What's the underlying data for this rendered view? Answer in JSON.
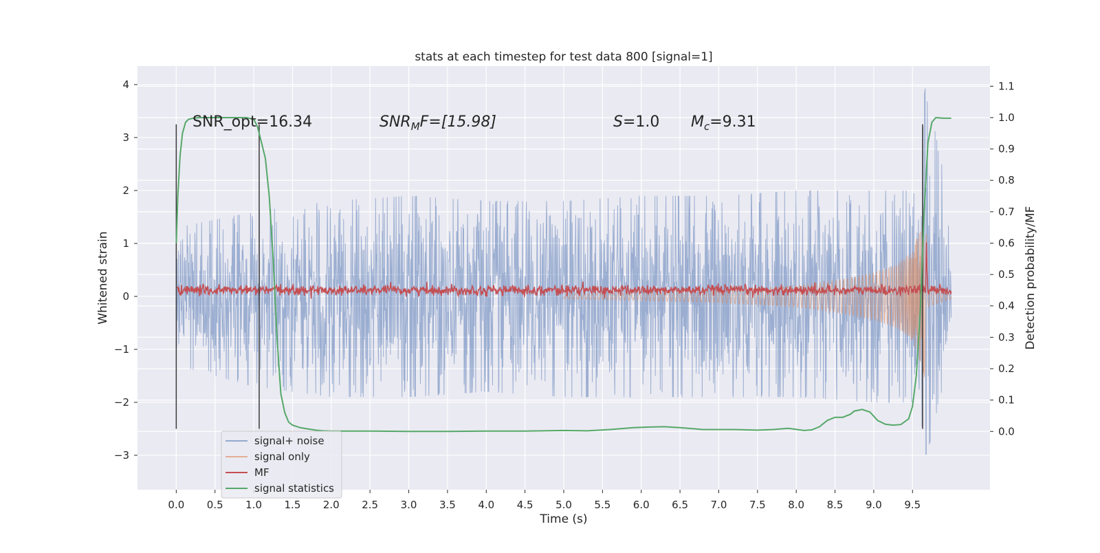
{
  "chart_data": {
    "type": "line",
    "title": "stats at each timestep for test data 800 [signal=1]",
    "xlabel": "Time (s)",
    "ylabel_left": "Whitened strain",
    "ylabel_right": "Detection probability/MF",
    "xlim": [
      -0.5,
      10.5
    ],
    "ylim_left": [
      -3.65,
      4.35
    ],
    "ylim_right": [
      -0.1857,
      1.1643
    ],
    "x_ticks": [
      0.0,
      0.5,
      1.0,
      1.5,
      2.0,
      2.5,
      3.0,
      3.5,
      4.0,
      4.5,
      5.0,
      5.5,
      6.0,
      6.5,
      7.0,
      7.5,
      8.0,
      8.5,
      9.0,
      9.5
    ],
    "x_tick_labels": [
      "0.0",
      "0.5",
      "1.0",
      "1.5",
      "2.0",
      "2.5",
      "3.0",
      "3.5",
      "4.0",
      "4.5",
      "5.0",
      "5.5",
      "6.0",
      "6.5",
      "7.0",
      "7.5",
      "8.0",
      "8.5",
      "9.0",
      "9.5"
    ],
    "y_left_ticks": [
      -3,
      -2,
      -1,
      0,
      1,
      2,
      3,
      4
    ],
    "y_left_tick_labels": [
      "−3",
      "−2",
      "−1",
      "0",
      "1",
      "2",
      "3",
      "4"
    ],
    "y_right_ticks": [
      0.0,
      0.1,
      0.2,
      0.3,
      0.4,
      0.5,
      0.6,
      0.7,
      0.8,
      0.9,
      1.0,
      1.1
    ],
    "y_right_tick_labels": [
      "0.0",
      "0.1",
      "0.2",
      "0.3",
      "0.4",
      "0.5",
      "0.6",
      "0.7",
      "0.8",
      "0.9",
      "1.0",
      "1.1"
    ],
    "grid": true,
    "legend_position": "lower-left",
    "colors": {
      "signal_noise": "#4c72b0",
      "signal_only": "#dd8452",
      "mf": "#c44e52",
      "statistics": "#55a868",
      "background": "#eaeaf2",
      "vline": "#3a3a3a"
    },
    "series": [
      {
        "name": "signal+ noise",
        "axis": "left",
        "description_points": "noise envelope approx amplitude 1-2.5",
        "envelope_upper": [
          [
            0.0,
            1.3
          ],
          [
            1.0,
            1.6
          ],
          [
            2.0,
            1.8
          ],
          [
            3.0,
            1.9
          ],
          [
            4.0,
            1.8
          ],
          [
            5.0,
            1.8
          ],
          [
            6.0,
            1.9
          ],
          [
            7.0,
            1.9
          ],
          [
            8.0,
            2.0
          ],
          [
            9.0,
            2.0
          ],
          [
            9.5,
            2.0
          ],
          [
            9.67,
            4.0
          ],
          [
            10.0,
            1.6
          ]
        ],
        "envelope_lower": [
          [
            0.0,
            -1.3
          ],
          [
            1.0,
            -1.7
          ],
          [
            2.0,
            -1.9
          ],
          [
            3.0,
            -1.9
          ],
          [
            4.0,
            -1.8
          ],
          [
            5.0,
            -1.9
          ],
          [
            6.0,
            -1.9
          ],
          [
            7.0,
            -1.9
          ],
          [
            8.0,
            -1.9
          ],
          [
            9.0,
            -2.0
          ],
          [
            9.5,
            -2.0
          ],
          [
            9.67,
            -3.0
          ],
          [
            10.0,
            -1.6
          ]
        ]
      },
      {
        "name": "signal only",
        "axis": "left",
        "envelope": [
          [
            5.0,
            0.05
          ],
          [
            6.0,
            0.08
          ],
          [
            7.0,
            0.12
          ],
          [
            8.0,
            0.2
          ],
          [
            8.5,
            0.3
          ],
          [
            9.0,
            0.45
          ],
          [
            9.3,
            0.6
          ],
          [
            9.5,
            0.85
          ],
          [
            9.6,
            1.3
          ],
          [
            9.67,
            1.6
          ],
          [
            9.7,
            0.2
          ],
          [
            10.0,
            0.05
          ]
        ]
      },
      {
        "name": "MF",
        "axis": "right",
        "level": 0.45,
        "peak": {
          "x": 9.68,
          "y": 0.6
        }
      },
      {
        "name": "signal statistics",
        "axis": "right",
        "x": [
          0.0,
          0.02,
          0.05,
          0.08,
          0.12,
          0.16,
          0.22,
          0.3,
          0.4,
          0.6,
          0.8,
          0.9,
          1.0,
          1.05,
          1.1,
          1.15,
          1.2,
          1.25,
          1.3,
          1.35,
          1.4,
          1.45,
          1.5,
          1.6,
          1.7,
          1.8,
          1.9,
          2.0,
          2.2,
          2.5,
          3.0,
          3.5,
          4.0,
          4.5,
          5.0,
          5.3,
          5.6,
          5.9,
          6.1,
          6.3,
          6.5,
          6.8,
          7.2,
          7.5,
          7.7,
          7.9,
          8.1,
          8.2,
          8.3,
          8.4,
          8.5,
          8.6,
          8.7,
          8.75,
          8.85,
          8.95,
          9.05,
          9.15,
          9.25,
          9.35,
          9.45,
          9.5,
          9.55,
          9.6,
          9.65,
          9.7,
          9.75,
          9.8,
          9.9,
          10.0
        ],
        "y": [
          0.6,
          0.75,
          0.88,
          0.95,
          0.985,
          0.995,
          0.998,
          1.0,
          1.0,
          1.0,
          1.0,
          1.0,
          0.995,
          0.97,
          0.92,
          0.87,
          0.75,
          0.55,
          0.3,
          0.12,
          0.06,
          0.03,
          0.02,
          0.012,
          0.008,
          0.004,
          0.002,
          0.001,
          0.001,
          0.001,
          0.0,
          0.0,
          0.001,
          0.001,
          0.003,
          0.002,
          0.006,
          0.012,
          0.014,
          0.015,
          0.012,
          0.006,
          0.006,
          0.004,
          0.006,
          0.01,
          0.003,
          0.005,
          0.015,
          0.035,
          0.045,
          0.045,
          0.055,
          0.065,
          0.07,
          0.062,
          0.035,
          0.023,
          0.02,
          0.022,
          0.04,
          0.08,
          0.18,
          0.38,
          0.7,
          0.92,
          0.985,
          1.0,
          0.998,
          0.998
        ]
      }
    ],
    "vertical_lines": [
      {
        "x": 0.0,
        "ymin": -2.5,
        "ymax": 3.25
      },
      {
        "x": 1.07,
        "ymin": -2.5,
        "ymax": 3.25
      },
      {
        "x": 9.63,
        "ymin": -2.5,
        "ymax": 3.25
      }
    ],
    "annotations": [
      {
        "text": "SNR_opt=16.34",
        "x": 0.2,
        "y": 3.3
      },
      {
        "text_main": "SNR",
        "text_sub": "M",
        "text_rest": "F=[15.98]",
        "x": 2.6,
        "y": 3.3
      },
      {
        "text_main": "S",
        "text_rest": "=1.0",
        "x": 5.6,
        "y": 3.3
      },
      {
        "text_main": "M",
        "text_sub": "c",
        "text_rest": "=9.31",
        "x": 6.6,
        "y": 3.3
      }
    ],
    "legend": [
      {
        "label": "signal+ noise",
        "color_key": "signal_noise"
      },
      {
        "label": "signal only",
        "color_key": "signal_only"
      },
      {
        "label": "MF",
        "color_key": "mf"
      },
      {
        "label": "signal statistics",
        "color_key": "statistics"
      }
    ]
  }
}
